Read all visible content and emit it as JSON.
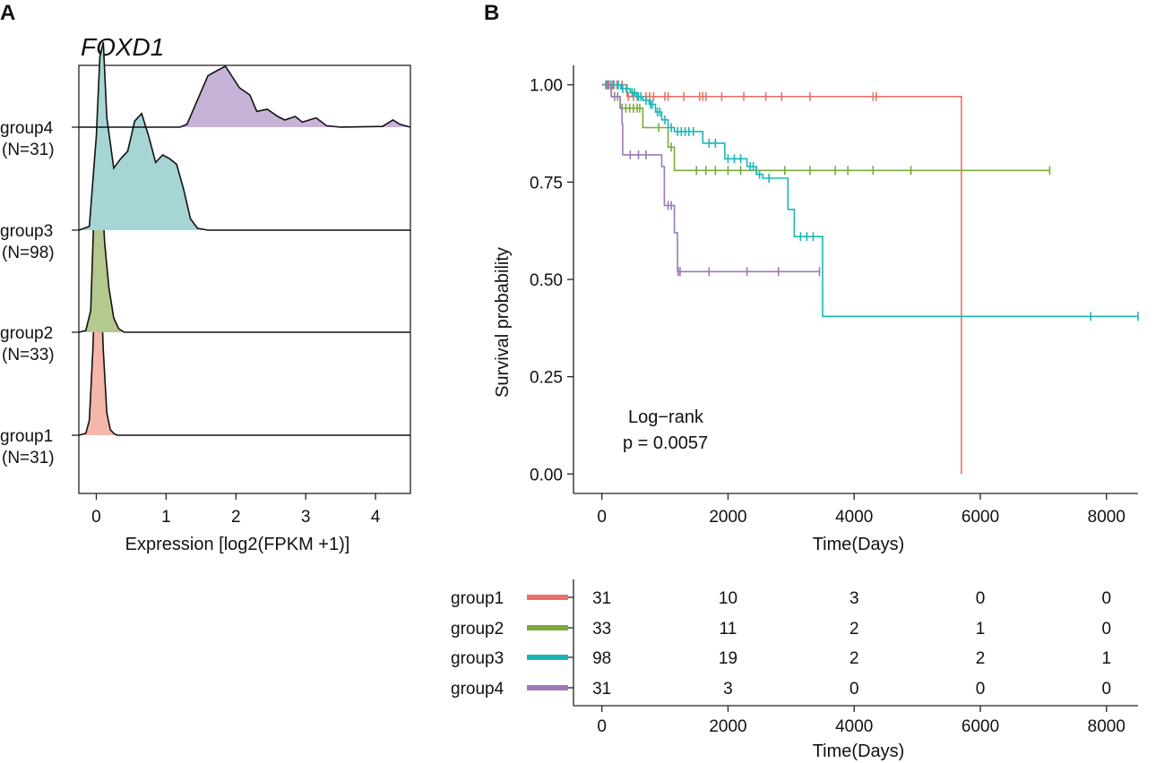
{
  "panel_a_label": "A",
  "panel_b_label": "B",
  "colors": {
    "group1": "#E8726A",
    "group2": "#7AAB3A",
    "group3": "#1BB5B5",
    "group4": "#9B79B8",
    "fill_group1": "#F4B7A9",
    "fill_group2": "#B3C98D",
    "fill_group3": "#A6D5D6",
    "fill_group4": "#C8B3D8"
  },
  "chart_data": [
    {
      "type": "area",
      "subtype": "ridgeline",
      "title": "FOXD1",
      "xlabel": "Expression [log2(FPKM +1)]",
      "ylabel": "",
      "xlim": [
        -0.25,
        4.5
      ],
      "x_ticks": [
        "0",
        "1",
        "2",
        "3",
        "4"
      ],
      "series": [
        {
          "name": "group1",
          "n_label": "(N=31)",
          "color_key": "group1",
          "x": [
            -0.25,
            -0.15,
            -0.1,
            -0.05,
            0,
            0.05,
            0.1,
            0.15,
            0.2,
            0.25,
            0.3,
            4.5
          ],
          "density": [
            0,
            0.01,
            0.08,
            0.45,
            1.0,
            0.95,
            0.45,
            0.12,
            0.03,
            0.01,
            0,
            0
          ]
        },
        {
          "name": "group2",
          "n_label": "(N=33)",
          "color_key": "group2",
          "x": [
            -0.25,
            -0.15,
            -0.08,
            -0.03,
            0.02,
            0.07,
            0.12,
            0.18,
            0.25,
            0.32,
            0.4,
            4.5
          ],
          "density": [
            0,
            0.01,
            0.12,
            0.7,
            1.0,
            0.85,
            0.5,
            0.25,
            0.08,
            0.02,
            0,
            0
          ]
        },
        {
          "name": "group3",
          "n_label": "(N=98)",
          "color_key": "group3",
          "x": [
            -0.25,
            -0.1,
            0.0,
            0.05,
            0.1,
            0.15,
            0.25,
            0.35,
            0.45,
            0.55,
            0.65,
            0.75,
            0.85,
            0.95,
            1.05,
            1.15,
            1.25,
            1.35,
            1.45,
            1.6,
            4.5
          ],
          "density": [
            0,
            0.02,
            0.5,
            0.92,
            1.0,
            0.6,
            0.33,
            0.38,
            0.42,
            0.58,
            0.62,
            0.5,
            0.36,
            0.4,
            0.38,
            0.35,
            0.22,
            0.06,
            0.01,
            0,
            0
          ]
        },
        {
          "name": "group4",
          "n_label": "(N=31)",
          "color_key": "group4",
          "x": [
            -0.25,
            1.2,
            1.3,
            1.45,
            1.6,
            1.75,
            1.85,
            1.95,
            2.05,
            2.2,
            2.3,
            2.45,
            2.6,
            2.7,
            2.85,
            2.95,
            3.05,
            3.15,
            3.3,
            3.5,
            4.1,
            4.25,
            4.35,
            4.5
          ],
          "density": [
            0,
            0,
            0.04,
            0.38,
            0.72,
            0.8,
            0.85,
            0.7,
            0.55,
            0.45,
            0.22,
            0.25,
            0.15,
            0.1,
            0.15,
            0.07,
            0.1,
            0.13,
            0.02,
            0,
            0.01,
            0.1,
            0.04,
            0
          ]
        }
      ]
    },
    {
      "type": "line",
      "subtype": "kaplan-meier",
      "title": "",
      "xlabel": "Time(Days)",
      "ylabel": "Survival probability",
      "xlim": [
        -450,
        8500
      ],
      "ylim": [
        -0.05,
        1.05
      ],
      "x_ticks": [
        "0",
        "2000",
        "4000",
        "6000",
        "8000"
      ],
      "y_ticks": [
        "0.00",
        "0.25",
        "0.50",
        "0.75",
        "1.00"
      ],
      "annotation_line1": "Log−rank",
      "annotation_line2": "p = 0.0057",
      "series": [
        {
          "name": "group1",
          "color_key": "group1",
          "steps": [
            [
              0,
              1.0
            ],
            [
              400,
              0.97
            ],
            [
              5700,
              0.0
            ]
          ],
          "end_time": 5700,
          "censor_times": [
            60,
            110,
            170,
            240,
            320,
            420,
            500,
            560,
            700,
            760,
            820,
            1000,
            1050,
            1300,
            1550,
            1600,
            1650,
            1900,
            2250,
            2600,
            2850,
            3300,
            4300,
            4350
          ]
        },
        {
          "name": "group2",
          "color_key": "group2",
          "steps": [
            [
              0,
              1.0
            ],
            [
              150,
              0.97
            ],
            [
              290,
              0.94
            ],
            [
              650,
              0.89
            ],
            [
              1050,
              0.84
            ],
            [
              1150,
              0.78
            ]
          ],
          "end_time": 7100,
          "censor_times": [
            200,
            250,
            320,
            380,
            440,
            500,
            560,
            600,
            900,
            1100,
            1500,
            1650,
            1800,
            2000,
            2200,
            2450,
            2900,
            3300,
            3700,
            3900,
            4300,
            4900,
            7100
          ]
        },
        {
          "name": "group3",
          "color_key": "group3",
          "steps": [
            [
              0,
              1.0
            ],
            [
              300,
              0.99
            ],
            [
              450,
              0.98
            ],
            [
              550,
              0.97
            ],
            [
              650,
              0.96
            ],
            [
              750,
              0.95
            ],
            [
              850,
              0.93
            ],
            [
              950,
              0.91
            ],
            [
              1050,
              0.89
            ],
            [
              1150,
              0.88
            ],
            [
              1600,
              0.85
            ],
            [
              1950,
              0.81
            ],
            [
              2300,
              0.79
            ],
            [
              2450,
              0.77
            ],
            [
              2550,
              0.76
            ],
            [
              2850,
              0.76
            ],
            [
              2950,
              0.68
            ],
            [
              3050,
              0.61
            ],
            [
              3500,
              0.405
            ]
          ],
          "end_time": 8500,
          "censor_times": [
            80,
            140,
            190,
            260,
            330,
            390,
            480,
            520,
            580,
            620,
            700,
            770,
            800,
            880,
            920,
            1000,
            1100,
            1200,
            1260,
            1320,
            1380,
            1450,
            1700,
            1800,
            2000,
            2100,
            2200,
            2350,
            2400,
            2500,
            2650,
            3150,
            3250,
            3350,
            7750,
            8500
          ]
        },
        {
          "name": "group4",
          "color_key": "group4",
          "steps": [
            [
              0,
              1.0
            ],
            [
              150,
              0.97
            ],
            [
              290,
              0.94
            ],
            [
              320,
              0.9
            ],
            [
              330,
              0.87
            ],
            [
              330,
              0.82
            ],
            [
              950,
              0.79
            ],
            [
              990,
              0.69
            ],
            [
              1150,
              0.62
            ],
            [
              1200,
              0.52
            ]
          ],
          "end_time": 3450,
          "censor_times": [
            100,
            200,
            450,
            580,
            700,
            1050,
            1100,
            1210,
            1240,
            1700,
            2300,
            2800,
            3450
          ]
        }
      ]
    },
    {
      "type": "table",
      "subtype": "number-at-risk",
      "xlabel": "Time(Days)",
      "xlim": [
        -450,
        8500
      ],
      "x_ticks": [
        "0",
        "2000",
        "4000",
        "6000",
        "8000"
      ],
      "rows": [
        {
          "name": "group1",
          "color_key": "group1",
          "values": [
            "31",
            "10",
            "3",
            "0",
            "0"
          ]
        },
        {
          "name": "group2",
          "color_key": "group2",
          "values": [
            "33",
            "11",
            "2",
            "1",
            "0"
          ]
        },
        {
          "name": "group3",
          "color_key": "group3",
          "values": [
            "98",
            "19",
            "2",
            "2",
            "1"
          ]
        },
        {
          "name": "group4",
          "color_key": "group4",
          "values": [
            "31",
            "3",
            "0",
            "0",
            "0"
          ]
        }
      ]
    }
  ]
}
